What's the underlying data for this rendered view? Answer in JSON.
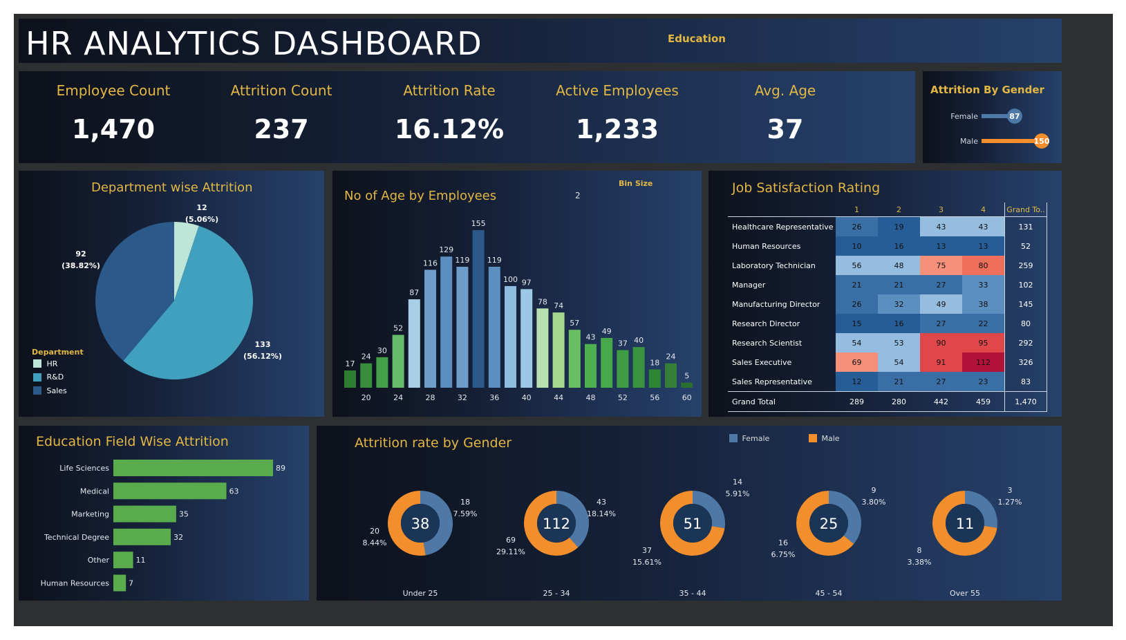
{
  "header": {
    "title": "HR ANALYTICS DASHBOARD",
    "filter_label": "Education"
  },
  "kpis": [
    {
      "label": "Employee Count",
      "value": "1,470"
    },
    {
      "label": "Attrition Count",
      "value": "237"
    },
    {
      "label": "Attrition Rate",
      "value": "16.12%"
    },
    {
      "label": "Active Employees",
      "value": "1,233"
    },
    {
      "label": "Avg. Age",
      "value": "37"
    }
  ],
  "gender_attrition": {
    "title": "Attrition By Gender",
    "max": 150,
    "bars": [
      {
        "label": "Female",
        "value": 87,
        "color": "#4e79a7"
      },
      {
        "label": "Male",
        "value": 150,
        "color": "#f28e2b"
      }
    ]
  },
  "department": {
    "title": "Department wise Attrition",
    "legend_title": "Department",
    "slices": [
      {
        "label": "HR",
        "value": 12,
        "pct": "(5.06%)",
        "color": "#bfe5d8"
      },
      {
        "label": "R&D",
        "value": 133,
        "pct": "(56.12%)",
        "color": "#41a0bd"
      },
      {
        "label": "Sales",
        "value": 92,
        "pct": "(38.82%)",
        "color": "#2b5a8a"
      }
    ]
  },
  "age_hist": {
    "title": "No of Age by Employees",
    "bin_label": "Bin Size",
    "bin_value": "2",
    "ticks": [
      "20",
      "24",
      "28",
      "32",
      "36",
      "40",
      "44",
      "48",
      "52",
      "56",
      "60"
    ],
    "values": [
      17,
      24,
      30,
      52,
      87,
      116,
      129,
      119,
      155,
      119,
      100,
      97,
      78,
      74,
      57,
      43,
      49,
      37,
      40,
      18,
      24,
      5
    ],
    "colors": [
      "#2e7d32",
      "#388e3c",
      "#43a047",
      "#66bb6a",
      "#a9cfe6",
      "#6d9dc8",
      "#5b8fc0",
      "#6d9dc8",
      "#2b5a8a",
      "#5b8fc0",
      "#8fbde0",
      "#9cc7e5",
      "#b8e0b0",
      "#a6d98f",
      "#6abf63",
      "#4caf50",
      "#48a84c",
      "#3e9c44",
      "#3a943f",
      "#2e8735",
      "#357f39",
      "#2a6f2f"
    ]
  },
  "job_satisfaction": {
    "title": "Job Satisfaction Rating",
    "columns": [
      "1",
      "2",
      "3",
      "4",
      "Grand To.."
    ],
    "rows": [
      {
        "role": "Healthcare Representative",
        "vals": [
          26,
          19,
          43,
          43
        ],
        "total": "131"
      },
      {
        "role": "Human Resources",
        "vals": [
          10,
          16,
          13,
          13
        ],
        "total": "52"
      },
      {
        "role": "Laboratory Technician",
        "vals": [
          56,
          48,
          75,
          80
        ],
        "total": "259"
      },
      {
        "role": "Manager",
        "vals": [
          21,
          21,
          27,
          33
        ],
        "total": "102"
      },
      {
        "role": "Manufacturing Director",
        "vals": [
          26,
          32,
          49,
          38
        ],
        "total": "145"
      },
      {
        "role": "Research Director",
        "vals": [
          15,
          16,
          27,
          22
        ],
        "total": "80"
      },
      {
        "role": "Research Scientist",
        "vals": [
          54,
          53,
          90,
          95
        ],
        "total": "292"
      },
      {
        "role": "Sales Executive",
        "vals": [
          69,
          54,
          91,
          112
        ],
        "total": "326"
      },
      {
        "role": "Sales Representative",
        "vals": [
          12,
          21,
          27,
          23
        ],
        "total": "83"
      }
    ],
    "grand_total": {
      "label": "Grand Total",
      "vals": [
        "289",
        "280",
        "442",
        "459"
      ],
      "total": "1,470"
    }
  },
  "education_field": {
    "title": "Education Field Wise Attrition",
    "max": 89,
    "color": "#5aaa4e",
    "bars": [
      {
        "label": "Life Sciences",
        "value": 89
      },
      {
        "label": "Medical",
        "value": 63
      },
      {
        "label": "Marketing",
        "value": 35
      },
      {
        "label": "Technical Degree",
        "value": 32
      },
      {
        "label": "Other",
        "value": 11
      },
      {
        "label": "Human Resources",
        "value": 7
      }
    ]
  },
  "attrition_gender_age": {
    "title": "Attrition rate by Gender",
    "legend": [
      {
        "label": "Female",
        "color": "#4e79a7"
      },
      {
        "label": "Male",
        "color": "#f28e2b"
      }
    ],
    "groups": [
      {
        "label": "Under 25",
        "total": "38",
        "female": 18,
        "female_pct": "7.59%",
        "male": 20,
        "male_pct": "8.44%"
      },
      {
        "label": "25 - 34",
        "total": "112",
        "female": 43,
        "female_pct": "18.14%",
        "male": 69,
        "male_pct": "29.11%"
      },
      {
        "label": "35 - 44",
        "total": "51",
        "female": 14,
        "female_pct": "5.91%",
        "male": 37,
        "male_pct": "15.61%"
      },
      {
        "label": "45 - 54",
        "total": "25",
        "female": 9,
        "female_pct": "3.80%",
        "male": 16,
        "male_pct": "6.75%"
      },
      {
        "label": "Over 55",
        "total": "11",
        "female": 3,
        "female_pct": "1.27%",
        "male": 8,
        "male_pct": "3.38%"
      }
    ]
  }
}
